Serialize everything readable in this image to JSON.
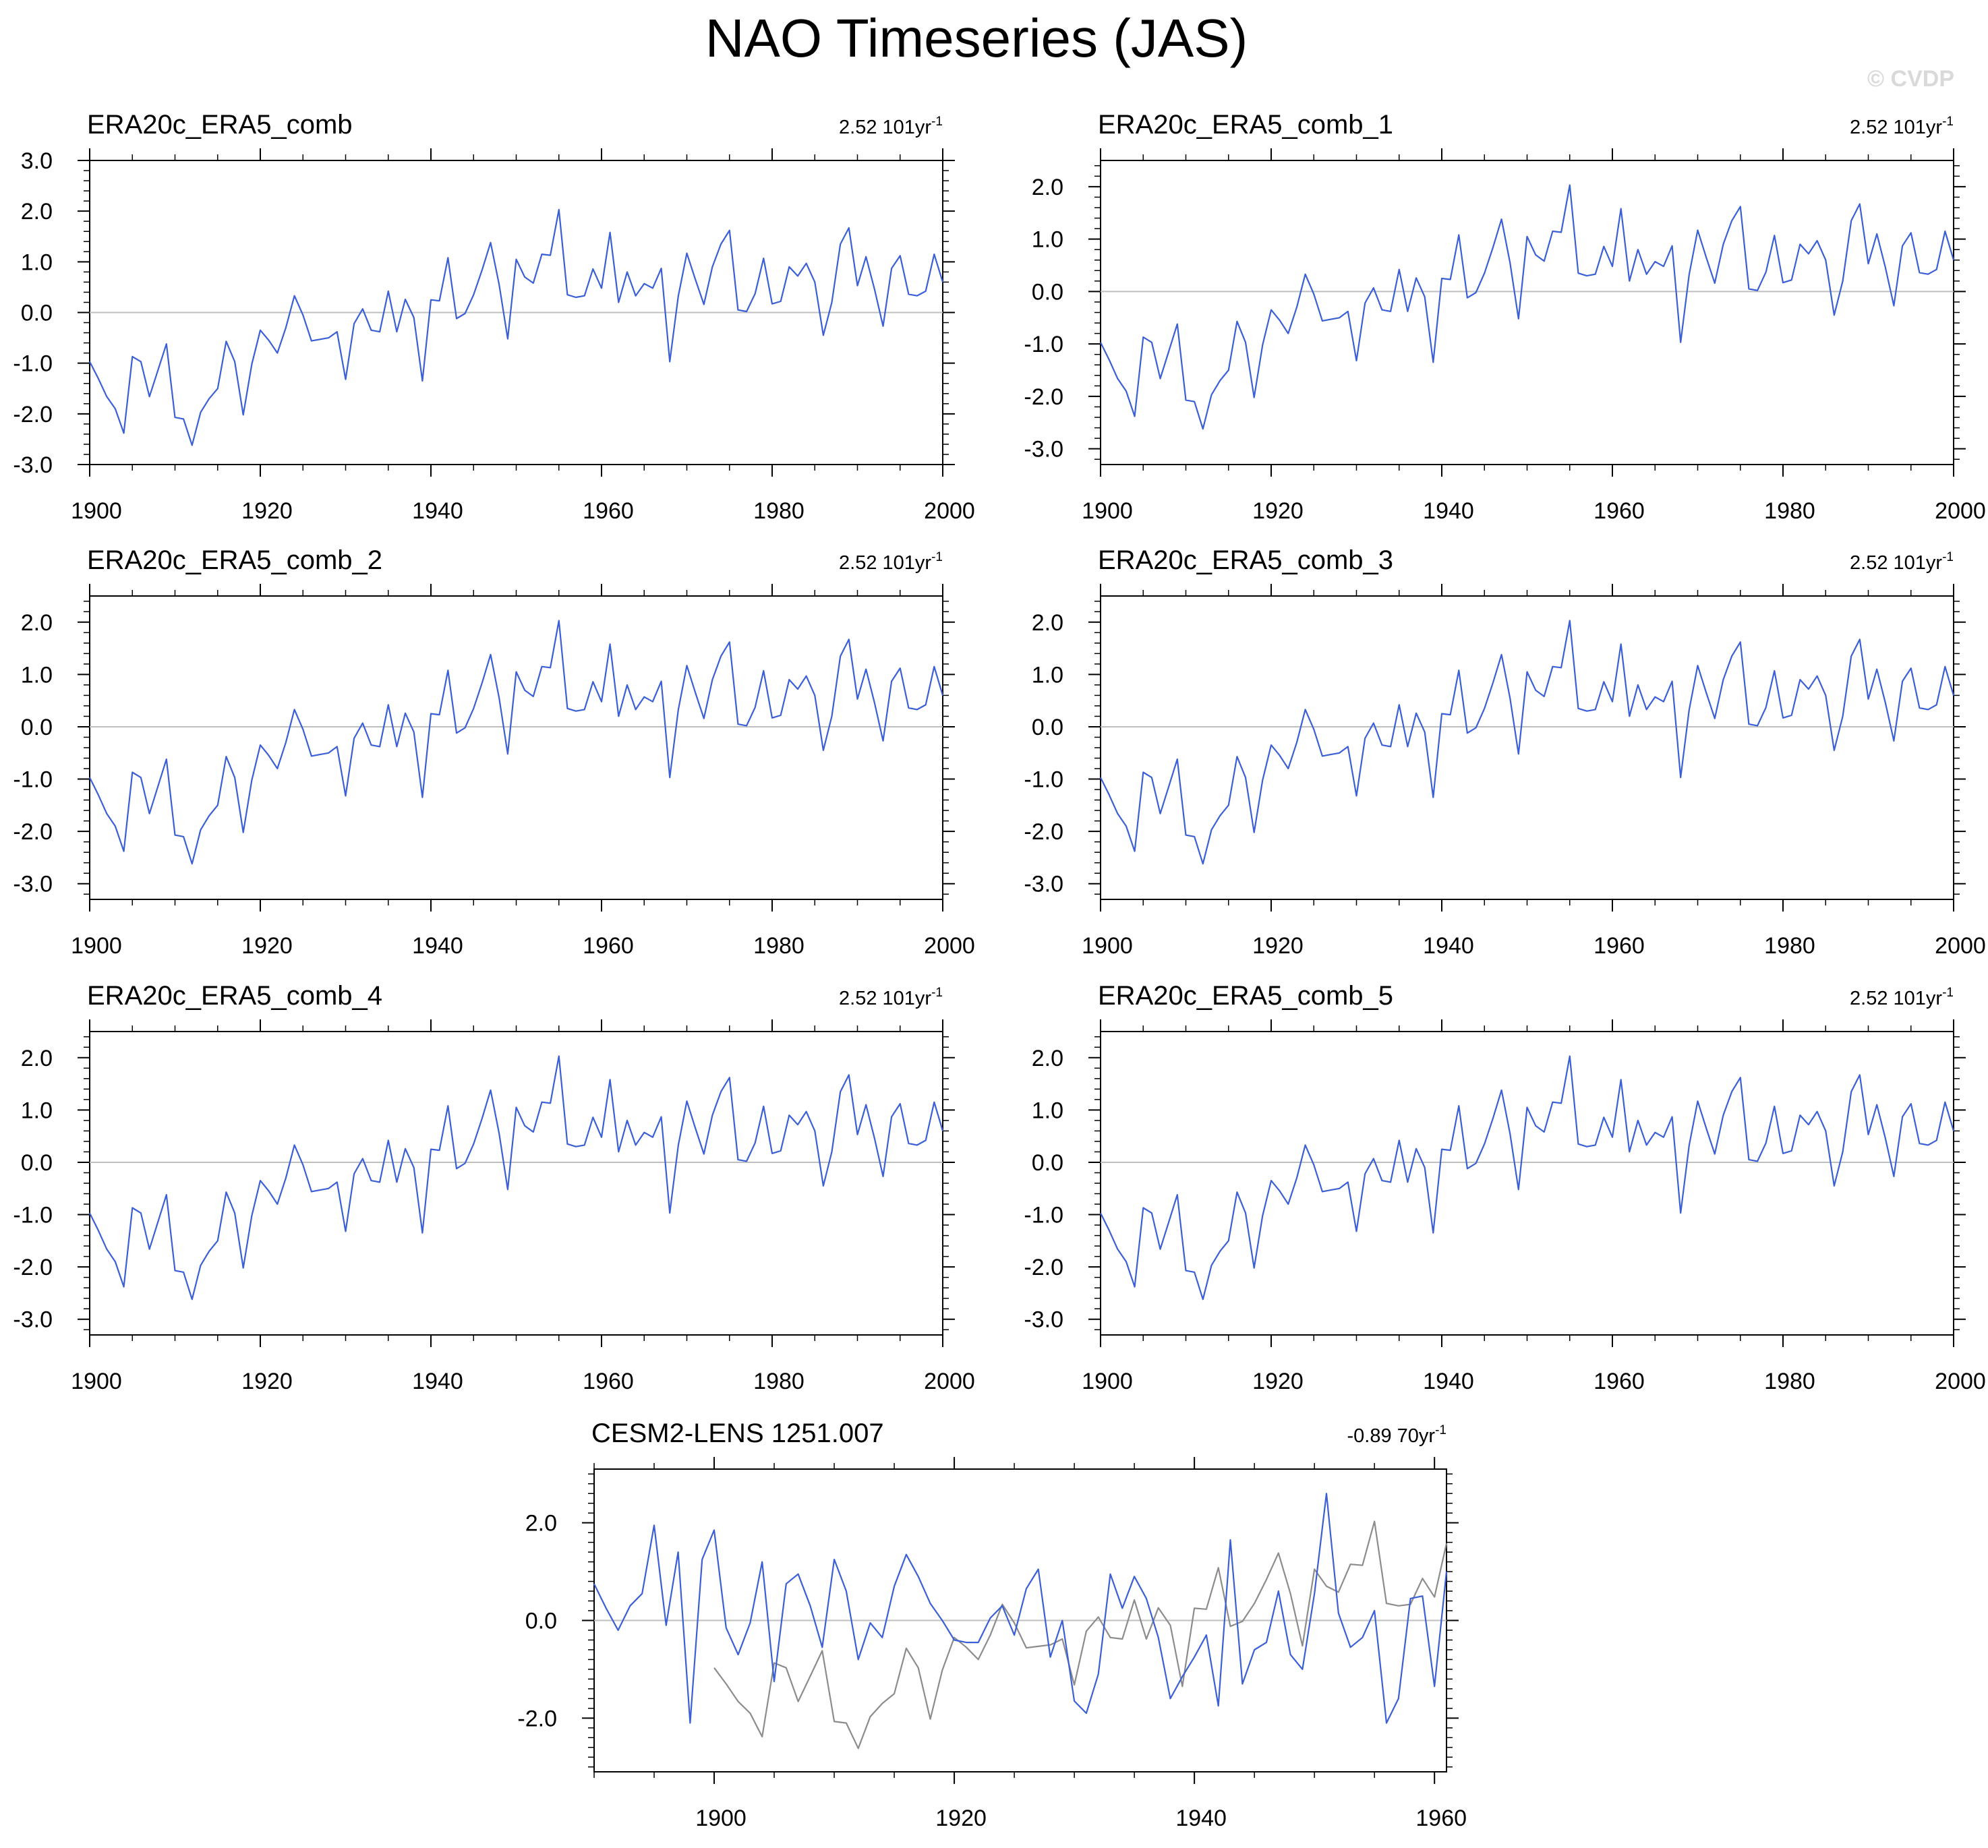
{
  "title": "NAO Timeseries (JAS)",
  "watermark": "© CVDP",
  "colors": {
    "series": "#3a5fd6",
    "observed": "#8c8c8c",
    "zero_line": "#bfbfbf",
    "axis": "#000000"
  },
  "obs_values": [
    -0.97,
    -1.3,
    -1.66,
    -1.9,
    -2.38,
    -0.87,
    -0.97,
    -1.66,
    -1.14,
    -0.62,
    -2.07,
    -2.1,
    -2.62,
    -1.97,
    -1.7,
    -1.5,
    -0.57,
    -0.97,
    -2.02,
    -1.02,
    -0.35,
    -0.55,
    -0.8,
    -0.3,
    0.33,
    -0.05,
    -0.56,
    -0.53,
    -0.5,
    -0.38,
    -1.32,
    -0.22,
    0.07,
    -0.35,
    -0.38,
    0.42,
    -0.38,
    0.26,
    -0.1,
    -1.35,
    0.25,
    0.23,
    1.08,
    -0.12,
    -0.02,
    0.35,
    0.84,
    1.38,
    0.55,
    -0.52,
    1.05,
    0.7,
    0.58,
    1.15,
    1.13,
    2.03,
    0.35,
    0.3,
    0.33,
    0.86,
    0.48,
    1.58,
    0.2,
    0.8,
    0.33,
    0.57,
    0.48,
    0.87,
    -0.97,
    0.32,
    1.17,
    0.65,
    0.16,
    0.9,
    1.35,
    1.62,
    0.05,
    0.02,
    0.37,
    1.07,
    0.17,
    0.22,
    0.9,
    0.72,
    0.97,
    0.6,
    -0.45,
    0.2,
    1.35,
    1.67,
    0.53,
    1.1,
    0.46,
    -0.27,
    0.87,
    1.12,
    0.36,
    0.33,
    0.42,
    1.15,
    0.6
  ],
  "cesm_values": [
    0.75,
    0.25,
    -0.2,
    0.3,
    0.55,
    1.95,
    -0.1,
    1.4,
    -2.1,
    1.25,
    1.85,
    -0.15,
    -0.7,
    -0.05,
    1.2,
    -1.25,
    0.75,
    0.95,
    0.3,
    -0.55,
    1.25,
    0.6,
    -0.8,
    -0.05,
    -0.35,
    0.7,
    1.35,
    0.9,
    0.35,
    0.0,
    -0.4,
    -0.45,
    -0.45,
    0.05,
    0.3,
    -0.3,
    0.65,
    1.05,
    -0.75,
    0.0,
    -1.65,
    -1.9,
    -1.1,
    0.95,
    0.25,
    0.9,
    0.45,
    -0.35,
    -1.6,
    -1.15,
    -0.75,
    -0.3,
    -1.75,
    1.65,
    -1.3,
    -0.6,
    -0.45,
    0.6,
    -0.7,
    -1.0,
    0.55,
    2.6,
    0.15,
    -0.55,
    -0.35,
    0.2,
    -2.1,
    -1.6,
    0.45,
    0.5,
    -1.35,
    1.0
  ],
  "panels": [
    {
      "label": "ERA20c_ERA5_comb",
      "trend": "2.52 101yr",
      "trend_sup": "-1",
      "ylim": [
        -3.0,
        3.0
      ],
      "yticks": [
        "3.0",
        "2.0",
        "1.0",
        "0.0",
        "-1.0",
        "-2.0",
        "-3.0"
      ],
      "xlim": [
        1900,
        2000
      ],
      "xticks": [
        "1900",
        "1920",
        "1940",
        "1960",
        "1980",
        "2000"
      ]
    },
    {
      "label": "ERA20c_ERA5_comb_1",
      "trend": "2.52 101yr",
      "trend_sup": "-1",
      "ylim": [
        -3.3,
        2.5
      ],
      "yticks": [
        "2.0",
        "1.0",
        "0.0",
        "-1.0",
        "-2.0",
        "-3.0"
      ],
      "xlim": [
        1900,
        2000
      ],
      "xticks": [
        "1900",
        "1920",
        "1940",
        "1960",
        "1980",
        "2000"
      ]
    },
    {
      "label": "ERA20c_ERA5_comb_2",
      "trend": "2.52 101yr",
      "trend_sup": "-1",
      "ylim": [
        -3.3,
        2.5
      ],
      "yticks": [
        "2.0",
        "1.0",
        "0.0",
        "-1.0",
        "-2.0",
        "-3.0"
      ],
      "xlim": [
        1900,
        2000
      ],
      "xticks": [
        "1900",
        "1920",
        "1940",
        "1960",
        "1980",
        "2000"
      ]
    },
    {
      "label": "ERA20c_ERA5_comb_3",
      "trend": "2.52 101yr",
      "trend_sup": "-1",
      "ylim": [
        -3.3,
        2.5
      ],
      "yticks": [
        "2.0",
        "1.0",
        "0.0",
        "-1.0",
        "-2.0",
        "-3.0"
      ],
      "xlim": [
        1900,
        2000
      ],
      "xticks": [
        "1900",
        "1920",
        "1940",
        "1960",
        "1980",
        "2000"
      ]
    },
    {
      "label": "ERA20c_ERA5_comb_4",
      "trend": "2.52 101yr",
      "trend_sup": "-1",
      "ylim": [
        -3.3,
        2.5
      ],
      "yticks": [
        "2.0",
        "1.0",
        "0.0",
        "-1.0",
        "-2.0",
        "-3.0"
      ],
      "xlim": [
        1900,
        2000
      ],
      "xticks": [
        "1900",
        "1920",
        "1940",
        "1960",
        "1980",
        "2000"
      ]
    },
    {
      "label": "ERA20c_ERA5_comb_5",
      "trend": "2.52 101yr",
      "trend_sup": "-1",
      "ylim": [
        -3.3,
        2.5
      ],
      "yticks": [
        "2.0",
        "1.0",
        "0.0",
        "-1.0",
        "-2.0",
        "-3.0"
      ],
      "xlim": [
        1900,
        2000
      ],
      "xticks": [
        "1900",
        "1920",
        "1940",
        "1960",
        "1980",
        "2000"
      ]
    },
    {
      "label": "CESM2-LENS 1251.007",
      "trend": "-0.89 70yr",
      "trend_sup": "-1",
      "ylim": [
        -3.1,
        3.1
      ],
      "yticks": [
        "2.0",
        "0.0",
        "-2.0"
      ],
      "xlim": [
        1890,
        1961
      ],
      "xticks": [
        "1900",
        "1920",
        "1940",
        "1960"
      ]
    }
  ],
  "chart_data": [
    {
      "type": "line",
      "title": "ERA20c_ERA5_comb",
      "annotation": "2.52 101yr-1",
      "x_start": 1900,
      "x_end": 2000,
      "series": [
        {
          "name": "ERA20c_ERA5_comb",
          "values": "obs_values (1900-2000)"
        }
      ],
      "ylim": [
        -3.0,
        3.0
      ]
    },
    {
      "type": "line",
      "title": "ERA20c_ERA5_comb_1",
      "annotation": "2.52 101yr-1",
      "x_start": 1900,
      "x_end": 2000,
      "series": [
        {
          "name": "ERA20c_ERA5_comb_1",
          "values": "obs_values (1900-2000)"
        }
      ],
      "ylim": [
        -3.3,
        2.5
      ]
    },
    {
      "type": "line",
      "title": "ERA20c_ERA5_comb_2",
      "annotation": "2.52 101yr-1",
      "x_start": 1900,
      "x_end": 2000,
      "series": [
        {
          "name": "ERA20c_ERA5_comb_2",
          "values": "obs_values (1900-2000)"
        }
      ],
      "ylim": [
        -3.3,
        2.5
      ]
    },
    {
      "type": "line",
      "title": "ERA20c_ERA5_comb_3",
      "annotation": "2.52 101yr-1",
      "x_start": 1900,
      "x_end": 2000,
      "series": [
        {
          "name": "ERA20c_ERA5_comb_3",
          "values": "obs_values (1900-2000)"
        }
      ],
      "ylim": [
        -3.3,
        2.5
      ]
    },
    {
      "type": "line",
      "title": "ERA20c_ERA5_comb_4",
      "annotation": "2.52 101yr-1",
      "x_start": 1900,
      "x_end": 2000,
      "series": [
        {
          "name": "ERA20c_ERA5_comb_4",
          "values": "obs_values (1900-2000)"
        }
      ],
      "ylim": [
        -3.3,
        2.5
      ]
    },
    {
      "type": "line",
      "title": "ERA20c_ERA5_comb_5",
      "annotation": "2.52 101yr-1",
      "x_start": 1900,
      "x_end": 2000,
      "series": [
        {
          "name": "ERA20c_ERA5_comb_5",
          "values": "obs_values (1900-2000)"
        }
      ],
      "ylim": [
        -3.3,
        2.5
      ]
    },
    {
      "type": "line",
      "title": "CESM2-LENS 1251.007",
      "annotation": "-0.89 70yr-1",
      "series": [
        {
          "name": "CESM2-LENS 1251.007",
          "x_start": 1890,
          "x_end": 1961,
          "values": "cesm_values (1890-1961)"
        },
        {
          "name": "ERA20c_ERA5_comb (observed, gray)",
          "x_start": 1900,
          "x_end": 1961,
          "values": "obs_values (1900-1961)"
        }
      ],
      "ylim": [
        -3.1,
        3.1
      ]
    }
  ]
}
